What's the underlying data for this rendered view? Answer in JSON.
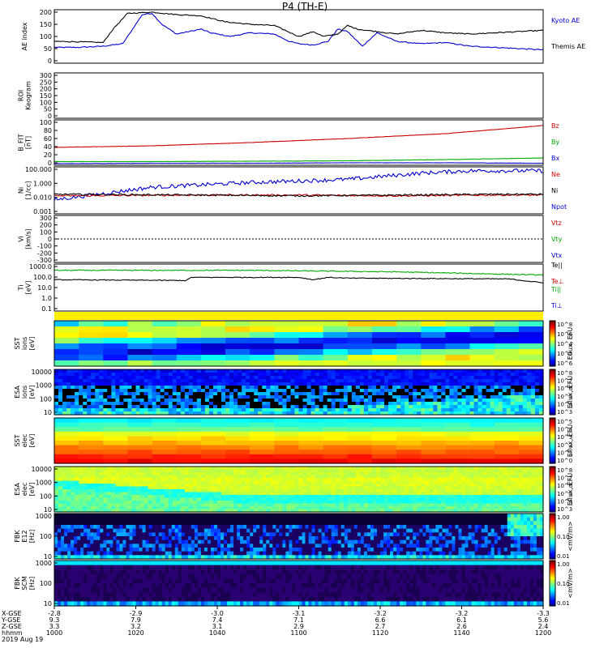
{
  "title": "P4 (TH-E)",
  "date_label": "2019 Aug 19",
  "colors": {
    "kyoto": "#0000cc",
    "themis": "#000000",
    "bz": "#cc0000",
    "by": "#00aa00",
    "bx": "#0000cc"
  },
  "chart_data": [
    {
      "type": "line",
      "panel": "ae",
      "ylabel": "AE index",
      "ylim": [
        0,
        200
      ],
      "yticks": [
        "200",
        "150",
        "100",
        "50",
        "0"
      ],
      "legend": [
        "Kyoto AE",
        "Themis AE"
      ],
      "series": [
        {
          "name": "Kyoto AE",
          "x": [
            0,
            0.05,
            0.1,
            0.14,
            0.18,
            0.2,
            0.22,
            0.25,
            0.3,
            0.32,
            0.36,
            0.4,
            0.45,
            0.48,
            0.5,
            0.53,
            0.56,
            0.58,
            0.6,
            0.63,
            0.66,
            0.7,
            0.75,
            0.8,
            0.85,
            0.9,
            0.95,
            1
          ],
          "values": [
            55,
            55,
            60,
            70,
            190,
            195,
            150,
            110,
            130,
            115,
            100,
            115,
            110,
            80,
            70,
            65,
            80,
            130,
            120,
            60,
            115,
            80,
            70,
            75,
            60,
            55,
            50,
            45
          ]
        },
        {
          "name": "Themis AE",
          "x": [
            0,
            0.05,
            0.1,
            0.12,
            0.15,
            0.2,
            0.25,
            0.3,
            0.35,
            0.4,
            0.45,
            0.5,
            0.53,
            0.55,
            0.58,
            0.6,
            0.62,
            0.66,
            0.7,
            0.75,
            0.8,
            0.85,
            0.9,
            0.95,
            1
          ],
          "values": [
            80,
            78,
            75,
            130,
            195,
            200,
            190,
            185,
            160,
            150,
            145,
            100,
            120,
            100,
            110,
            145,
            130,
            120,
            110,
            125,
            115,
            110,
            115,
            120,
            125
          ]
        }
      ]
    },
    {
      "type": "heatmap",
      "panel": "keogram",
      "ylabel": "Keogram",
      "ylabel2": "ROI",
      "yticks": [
        "300",
        "250",
        "200",
        "150",
        "100",
        "50",
        "0"
      ]
    },
    {
      "type": "line",
      "panel": "bfield",
      "ylabel": "B_FIT [nT]",
      "yticks": [
        "100",
        "80",
        "60",
        "40",
        "20",
        "0"
      ],
      "ylim": [
        0,
        100
      ],
      "legend": [
        "Bz",
        "By",
        "Bx"
      ],
      "series": [
        {
          "name": "Bz",
          "x": [
            0,
            0.2,
            0.4,
            0.6,
            0.8,
            1
          ],
          "values": [
            38,
            42,
            50,
            60,
            72,
            92
          ]
        },
        {
          "name": "By",
          "x": [
            0,
            0.2,
            0.4,
            0.6,
            0.8,
            1
          ],
          "values": [
            3,
            3,
            4,
            5,
            8,
            12
          ]
        },
        {
          "name": "Bx",
          "x": [
            0,
            0.2,
            0.4,
            0.6,
            0.8,
            1
          ],
          "values": [
            -2,
            -1,
            -1,
            0,
            0,
            -1
          ]
        }
      ]
    },
    {
      "type": "line",
      "panel": "density",
      "ylabel": "Ni [1/cc]",
      "yticks": [
        "100.000",
        "1.000",
        "0.010",
        "0.001"
      ],
      "legend": [
        "Ne",
        "Ni",
        "Npot"
      ]
    },
    {
      "type": "line",
      "panel": "velocity",
      "ylabel": "Vi [km/s]",
      "yticks": [
        "300",
        "200",
        "100",
        "0",
        "-100",
        "-200",
        "-300"
      ],
      "legend": [
        "Vtz",
        "Vty",
        "Vtx"
      ]
    },
    {
      "type": "line",
      "panel": "temperature",
      "ylabel": "Ti [eV]",
      "yticks": [
        "1000.0",
        "100.0",
        "10.0",
        "1.0",
        "0.1"
      ],
      "legend": [
        "Te||",
        "Te⊥",
        "Ti||",
        "Ti⊥"
      ]
    },
    {
      "type": "heatmap",
      "panel": "sst_ion",
      "ylabel": "SST ions [eV]",
      "colorbar_label": "Eflux, EFU",
      "colorbar_ticks": [
        "10^8",
        "10^6",
        "10^4",
        "10^5",
        "10^6"
      ]
    },
    {
      "type": "heatmap",
      "panel": "esa_ion",
      "ylabel": "ESA ions [eV]",
      "yticks": [
        "10000",
        "1000",
        "100",
        "10"
      ],
      "colorbar_label": "Eflux, EFU",
      "colorbar_ticks": [
        "10^8",
        "10^7",
        "10^6",
        "10^5",
        "10^4",
        "10^3"
      ]
    },
    {
      "type": "heatmap",
      "panel": "sst_elec",
      "ylabel": "SST elec [eV]",
      "colorbar_label": "Eflux, EFU",
      "colorbar_ticks": [
        "10^5",
        "10^4",
        "10^3",
        "10^2",
        "10^1",
        "10^0"
      ]
    },
    {
      "type": "heatmap",
      "panel": "esa_elec",
      "ylabel": "ESA elec [eV]",
      "yticks": [
        "10000",
        "1000",
        "100",
        "10"
      ],
      "colorbar_label": "Eflux, EFU",
      "colorbar_ticks": [
        "10^8",
        "10^7",
        "10^6",
        "10^5",
        "10^4",
        "10^3"
      ]
    },
    {
      "type": "heatmap",
      "panel": "fbk_e12",
      "ylabel": "FBK E12 [Hz]",
      "yticks": [
        "1000",
        "100",
        "10"
      ],
      "colorbar_label": "<mV/m>",
      "colorbar_ticks": [
        "1.00",
        "0.10",
        "0.01"
      ]
    },
    {
      "type": "heatmap",
      "panel": "fbk_scm",
      "ylabel": "FBK SCM [Hz]",
      "yticks": [
        "1000",
        "100",
        "10"
      ],
      "colorbar_label": "<mV/m>",
      "colorbar_ticks": [
        "1.00",
        "0.10",
        "0.01"
      ]
    }
  ],
  "xaxis": {
    "row_labels": [
      "X-GSE",
      "Y-GSE",
      "Z-GSE",
      "hhmm",
      "2019 Aug 19"
    ],
    "columns": [
      {
        "x": "-2.8",
        "y": "9.3",
        "z": "3.3",
        "t": "1000"
      },
      {
        "x": "-2.9",
        "y": "7.9",
        "z": "3.2",
        "t": "1020"
      },
      {
        "x": "-3.0",
        "y": "7.4",
        "z": "3.1",
        "t": "1040"
      },
      {
        "x": "-3.1",
        "y": "7.1",
        "z": "2.9",
        "t": "1100"
      },
      {
        "x": "-3.2",
        "y": "6.6",
        "z": "2.7",
        "t": "1120"
      },
      {
        "x": "-3.2",
        "y": "6.1",
        "z": "2.6",
        "t": "1140"
      },
      {
        "x": "-3.3",
        "y": "5.6",
        "z": "2.4",
        "t": "1200"
      }
    ]
  }
}
